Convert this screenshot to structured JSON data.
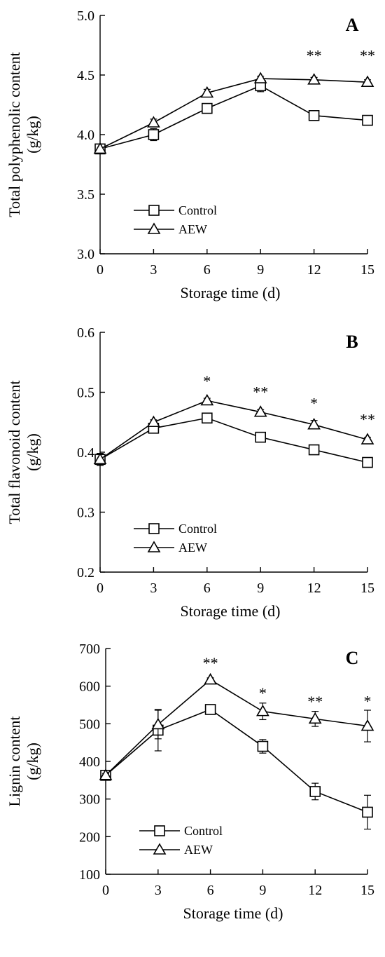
{
  "chart_data": [
    {
      "type": "line",
      "panel_label": "A",
      "xlabel": "Storage time (d)",
      "ylabel_lines": [
        "Total polyphenolic content",
        "(g/kg)"
      ],
      "x": [
        0,
        3,
        6,
        9,
        12,
        15
      ],
      "xlim": [
        0,
        15
      ],
      "xticks": [
        "0",
        "3",
        "6",
        "9",
        "12",
        "15"
      ],
      "ylim": [
        3.0,
        5.0
      ],
      "yticks": [
        "3.0",
        "3.5",
        "4.0",
        "4.5",
        "5.0"
      ],
      "yticks_values": [
        3.0,
        3.5,
        4.0,
        4.5,
        5.0
      ],
      "legend_placement": "bottom-left",
      "series": [
        {
          "name": "Control",
          "marker": "square",
          "values": [
            3.88,
            4.0,
            4.22,
            4.41,
            4.16,
            4.12
          ],
          "errors": [
            0.0,
            0.05,
            0.02,
            0.05,
            0.02,
            0.02
          ]
        },
        {
          "name": "AEW",
          "marker": "triangle",
          "values": [
            3.88,
            4.1,
            4.35,
            4.47,
            4.46,
            4.44
          ],
          "errors": [
            0.0,
            0.03,
            0.03,
            0.02,
            0.02,
            0.02
          ]
        }
      ],
      "significance": [
        {
          "x": 12,
          "label": "**",
          "y": 4.62
        },
        {
          "x": 15,
          "label": "**",
          "y": 4.62
        }
      ]
    },
    {
      "type": "line",
      "panel_label": "B",
      "xlabel": "Storage time (d)",
      "ylabel_lines": [
        "Total flavonoid content",
        "(g/kg)"
      ],
      "x": [
        0,
        3,
        6,
        9,
        12,
        15
      ],
      "xlim": [
        0,
        15
      ],
      "xticks": [
        "0",
        "3",
        "6",
        "9",
        "12",
        "15"
      ],
      "ylim": [
        0.2,
        0.6
      ],
      "yticks": [
        "0.2",
        "0.3",
        "0.4",
        "0.5",
        "0.6"
      ],
      "yticks_values": [
        0.2,
        0.3,
        0.4,
        0.5,
        0.6
      ],
      "legend_placement": "bottom-left",
      "series": [
        {
          "name": "Control",
          "marker": "square",
          "values": [
            0.388,
            0.44,
            0.457,
            0.425,
            0.404,
            0.383
          ],
          "errors": [
            0.01,
            0.004,
            0.004,
            0.004,
            0.004,
            0.004
          ]
        },
        {
          "name": "AEW",
          "marker": "triangle",
          "values": [
            0.388,
            0.45,
            0.486,
            0.467,
            0.446,
            0.421
          ],
          "errors": [
            0.01,
            0.004,
            0.004,
            0.004,
            0.007,
            0.004
          ]
        }
      ],
      "significance": [
        {
          "x": 6,
          "label": "*",
          "y": 0.51
        },
        {
          "x": 9,
          "label": "**",
          "y": 0.492
        },
        {
          "x": 12,
          "label": "*",
          "y": 0.473
        },
        {
          "x": 15,
          "label": "**",
          "y": 0.446
        }
      ]
    },
    {
      "type": "line",
      "panel_label": "C",
      "xlabel": "Storage time (d)",
      "ylabel_lines": [
        "Lignin content",
        "(g/kg)"
      ],
      "x": [
        0,
        3,
        6,
        9,
        12,
        15
      ],
      "xlim": [
        0,
        15
      ],
      "xticks": [
        "0",
        "3",
        "6",
        "9",
        "12",
        "15"
      ],
      "ylim": [
        100,
        700
      ],
      "yticks": [
        "100",
        "200",
        "300",
        "400",
        "500",
        "600",
        "700"
      ],
      "yticks_values": [
        100,
        200,
        300,
        400,
        500,
        600,
        700
      ],
      "legend_placement": "bottom-left",
      "series": [
        {
          "name": "Control",
          "marker": "square",
          "values": [
            363,
            483,
            538,
            440,
            320,
            265
          ],
          "errors": [
            5,
            55,
            5,
            18,
            22,
            45
          ]
        },
        {
          "name": "AEW",
          "marker": "triangle",
          "values": [
            363,
            498,
            617,
            533,
            513,
            494
          ],
          "errors": [
            5,
            38,
            5,
            22,
            20,
            42
          ]
        }
      ],
      "significance": [
        {
          "x": 6,
          "label": "**",
          "y": 648
        },
        {
          "x": 9,
          "label": "*",
          "y": 568
        },
        {
          "x": 12,
          "label": "**",
          "y": 545
        },
        {
          "x": 15,
          "label": "*",
          "y": 546
        }
      ]
    }
  ]
}
